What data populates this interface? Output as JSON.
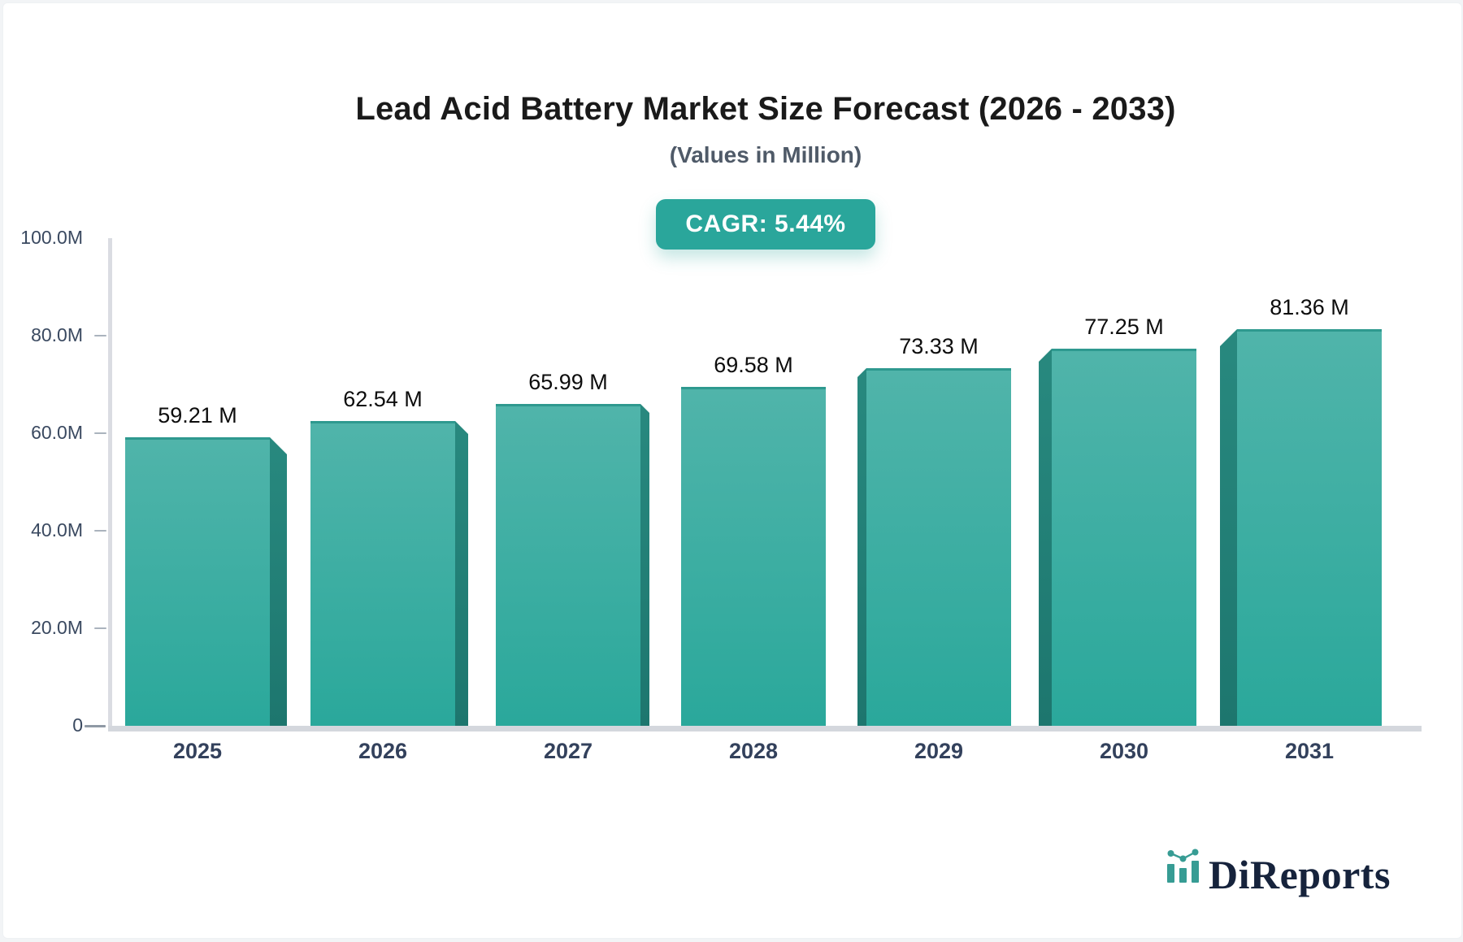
{
  "header": {
    "title": "Lead Acid Battery Market Size Forecast (2026 - 2033)",
    "subtitle": "(Values in Million)",
    "cagr_badge": "CAGR: 5.44%"
  },
  "chart_data": {
    "type": "bar",
    "title": "Lead Acid Battery Market Size Forecast (2026 - 2033)",
    "subtitle": "(Values in Million)",
    "unit": "Million",
    "cagr_percent": 5.44,
    "categories": [
      "2025",
      "2026",
      "2027",
      "2028",
      "2029",
      "2030",
      "2031"
    ],
    "values": [
      59.21,
      62.54,
      65.99,
      69.58,
      73.33,
      77.25,
      81.36
    ],
    "value_labels": [
      "59.21 M",
      "62.54 M",
      "65.99 M",
      "69.58 M",
      "73.33 M",
      "77.25 M",
      "81.36 M"
    ],
    "ylim": [
      0,
      100
    ],
    "y_ticks": [
      {
        "value": 100,
        "label": "100.0M"
      },
      {
        "value": 80,
        "label": "80.0M"
      },
      {
        "value": 60,
        "label": "60.0M"
      },
      {
        "value": 40,
        "label": "40.0M"
      },
      {
        "value": 20,
        "label": "20.0M"
      },
      {
        "value": 0,
        "label": "0"
      }
    ],
    "grid": false,
    "legend": false,
    "bar_style": "3d",
    "colors": {
      "bar_top": "#50b4aa",
      "bar_bottom": "#2aa89b",
      "bar_side": "#1f7d74",
      "accent": "#2aa69b",
      "axis_text": "#3a4960",
      "category_text": "#33415c",
      "value_text": "#0d0d0d",
      "baseline": "#d4d7dd"
    }
  },
  "branding": {
    "logo_text": "DiReports",
    "logo_icon": "mini-bar-line-chart-icon",
    "logo_text_color": "#16233c",
    "logo_icon_color": "#379c94"
  }
}
